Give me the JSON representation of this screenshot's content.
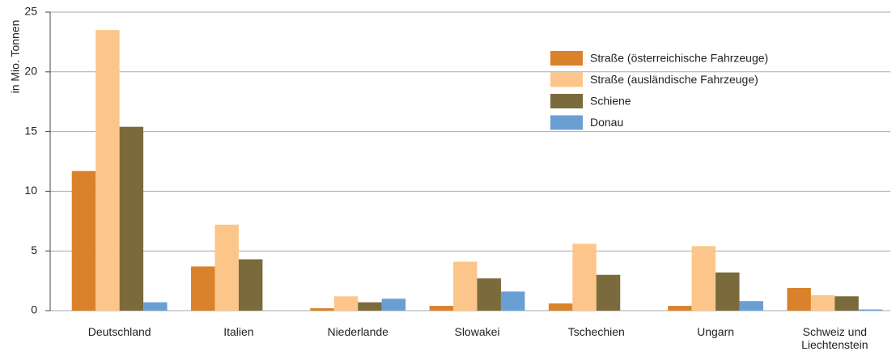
{
  "chart_data": {
    "type": "bar",
    "y_label": "in Mio. Tonnen",
    "categories": [
      "Deutschland",
      "Italien",
      "Niederlande",
      "Slowakei",
      "Tschechien",
      "Ungarn",
      "Schweiz und Liechtenstein"
    ],
    "series": [
      {
        "name": "Straße (österreichische Fahrzeuge)",
        "color": "#d9822b",
        "values": [
          11.7,
          3.7,
          0.2,
          0.4,
          0.6,
          0.4,
          1.9
        ]
      },
      {
        "name": "Straße (ausländische Fahrzeuge)",
        "color": "#fcc68a",
        "values": [
          23.5,
          7.2,
          1.2,
          4.1,
          5.6,
          5.4,
          1.3
        ]
      },
      {
        "name": "Schiene",
        "color": "#7b6a3c",
        "values": [
          15.4,
          4.3,
          0.7,
          2.7,
          3.0,
          3.2,
          1.2
        ]
      },
      {
        "name": "Donau",
        "color": "#6a9fd4",
        "values": [
          0.7,
          0,
          1.0,
          1.6,
          0,
          0.8,
          0.1
        ]
      }
    ],
    "ylim": [
      0,
      25
    ],
    "yticks": [
      0,
      5,
      10,
      15,
      20,
      25
    ],
    "grid": true,
    "legend": "upper right"
  }
}
